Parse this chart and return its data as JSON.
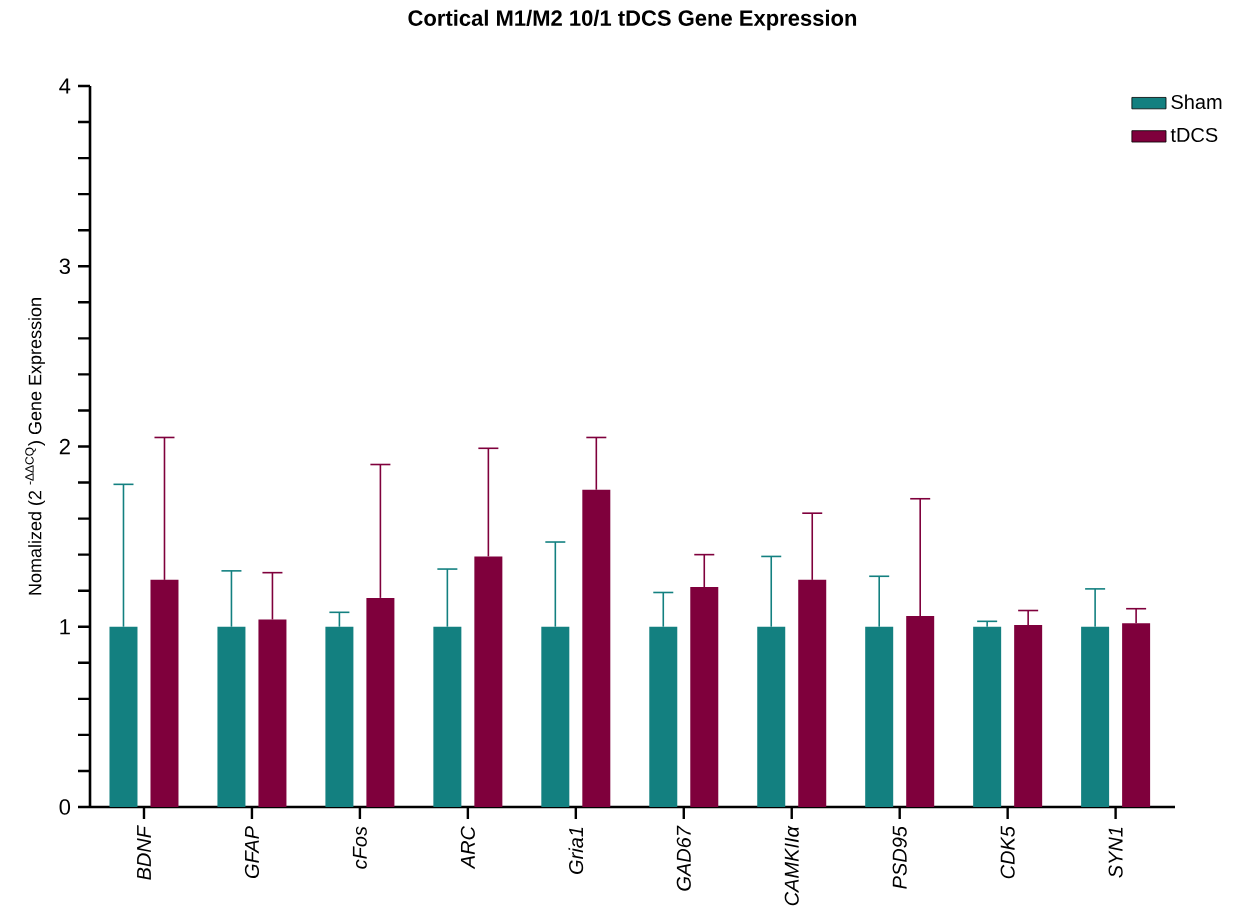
{
  "chart_data": {
    "type": "bar",
    "title": "Cortical M1/M2 10/1 tDCS Gene Expression",
    "ylabel": "Nomalized (2 $^{-ΔΔCQ}$) Gene Expression",
    "categories": [
      "BDNF",
      "GFAP",
      "cFos",
      "ARC",
      "Gria1",
      "GAD67",
      "CAMKIIα",
      "PSD95",
      "CDK5",
      "SYN1"
    ],
    "series": [
      {
        "name": "Sham",
        "color": "#138080",
        "values": [
          1,
          1,
          1,
          1,
          1,
          1,
          1,
          1,
          1,
          1
        ],
        "errors": [
          [
            1,
            1.79
          ],
          [
            1,
            1.31
          ],
          [
            1,
            1.08
          ],
          [
            1,
            1.32
          ],
          [
            1,
            1.47
          ],
          [
            1,
            1.19
          ],
          [
            1,
            1.39
          ],
          [
            1,
            1.28
          ],
          [
            1,
            1.03
          ],
          [
            1,
            1.21
          ]
        ]
      },
      {
        "name": "tDCS",
        "color": "#7f003c",
        "values": [
          1.26,
          1.04,
          1.16,
          1.39,
          1.76,
          1.22,
          1.26,
          1.06,
          1.01,
          1.02
        ],
        "errors": [
          [
            1.26,
            2.05
          ],
          [
            1.04,
            1.3
          ],
          [
            1.16,
            1.9
          ],
          [
            1.39,
            1.99
          ],
          [
            1.76,
            2.05
          ],
          [
            1.22,
            1.4
          ],
          [
            1.26,
            1.63
          ],
          [
            1.06,
            1.71
          ],
          [
            1.01,
            1.09
          ],
          [
            1.02,
            1.1
          ]
        ]
      }
    ],
    "ylim": [
      0,
      4
    ],
    "yticks": [
      0,
      {
        "value": 0.2,
        "label": null
      },
      {
        "value": 0.4,
        "label": null
      },
      {
        "value": 0.6,
        "label": null
      },
      {
        "value": 0.8,
        "label": null
      },
      1,
      {
        "value": 1.2,
        "label": null
      },
      {
        "value": 1.4,
        "label": null
      },
      {
        "value": 1.6,
        "label": null
      },
      {
        "value": 1.8,
        "label": null
      },
      2,
      {
        "value": 2.2,
        "label": null
      },
      {
        "value": 2.4,
        "label": null
      },
      {
        "value": 2.6,
        "label": null
      },
      {
        "value": 2.8,
        "label": null
      },
      3,
      {
        "value": 3.2,
        "label": null
      },
      {
        "value": 3.4,
        "label": null
      },
      {
        "value": 3.6,
        "label": null
      },
      {
        "value": 3.8,
        "label": null
      },
      4
    ],
    "grid": false,
    "legend": "top right"
  }
}
